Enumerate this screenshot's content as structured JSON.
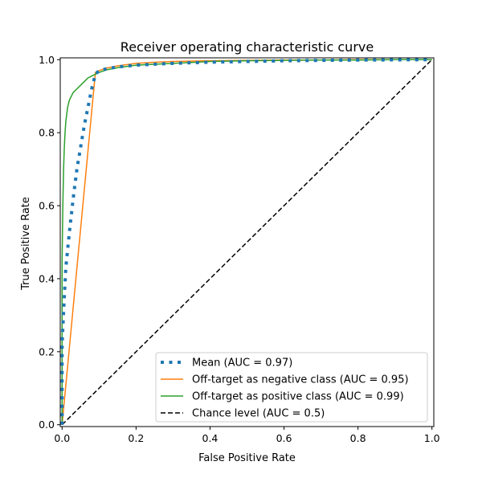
{
  "chart_data": {
    "type": "line",
    "title": "Receiver operating characteristic curve",
    "xlabel": "False Positive Rate",
    "ylabel": "True Positive Rate",
    "xlim": [
      -0.005,
      1.005
    ],
    "ylim": [
      -0.005,
      1.005
    ],
    "x_ticks": [
      "0.0",
      "0.2",
      "0.4",
      "0.6",
      "0.8",
      "1.0"
    ],
    "y_ticks": [
      "0.0",
      "0.2",
      "0.4",
      "0.6",
      "0.8",
      "1.0"
    ],
    "x_tick_values": [
      0.0,
      0.2,
      0.4,
      0.6,
      0.8,
      1.0
    ],
    "y_tick_values": [
      0.0,
      0.2,
      0.4,
      0.6,
      0.8,
      1.0
    ],
    "grid": false,
    "legend_position": "lower right",
    "series": [
      {
        "name": "Mean (AUC = 0.97)",
        "color": "#1f77b4",
        "style": "dotted",
        "x": [
          0.0,
          0.0,
          0.005,
          0.01,
          0.02,
          0.03,
          0.04,
          0.05,
          0.06,
          0.07,
          0.08,
          0.09,
          0.1,
          0.12,
          0.15,
          0.2,
          0.3,
          0.4,
          0.5,
          0.6,
          0.7,
          0.8,
          0.9,
          1.0
        ],
        "y": [
          0.0,
          0.22,
          0.33,
          0.43,
          0.53,
          0.62,
          0.7,
          0.76,
          0.82,
          0.87,
          0.92,
          0.96,
          0.97,
          0.975,
          0.98,
          0.985,
          0.99,
          0.993,
          0.995,
          0.997,
          0.998,
          0.999,
          0.9995,
          1.0
        ]
      },
      {
        "name": "Off-target as negative class (AUC = 0.95)",
        "color": "#ff7f0e",
        "style": "solid",
        "x": [
          0.0,
          0.09,
          0.1,
          0.12,
          0.15,
          0.2,
          0.25,
          0.3,
          0.4,
          0.5,
          0.6,
          0.7,
          0.8,
          0.9,
          1.0
        ],
        "y": [
          0.0,
          0.965,
          0.97,
          0.977,
          0.983,
          0.99,
          0.993,
          0.995,
          0.997,
          0.998,
          0.999,
          0.999,
          1.0,
          1.0,
          1.0
        ]
      },
      {
        "name": "Off-target as positive class (AUC = 0.99)",
        "color": "#2ca02c",
        "style": "solid",
        "x": [
          0.0,
          0.0,
          0.002,
          0.004,
          0.006,
          0.008,
          0.01,
          0.015,
          0.02,
          0.03,
          0.04,
          0.05,
          0.06,
          0.07,
          0.08,
          0.09,
          0.1,
          0.12,
          0.15,
          0.2,
          0.3,
          0.4,
          0.5,
          0.6,
          0.7,
          0.8,
          0.9,
          1.0
        ],
        "y": [
          0.0,
          0.45,
          0.6,
          0.7,
          0.76,
          0.8,
          0.83,
          0.87,
          0.89,
          0.91,
          0.92,
          0.93,
          0.94,
          0.95,
          0.955,
          0.96,
          0.965,
          0.972,
          0.978,
          0.985,
          0.99,
          0.995,
          0.997,
          0.998,
          0.999,
          0.999,
          1.0,
          1.0
        ]
      },
      {
        "name": "Chance level (AUC = 0.5)",
        "color": "#000000",
        "style": "dashed",
        "x": [
          0.0,
          1.0
        ],
        "y": [
          0.0,
          1.0
        ]
      }
    ]
  }
}
